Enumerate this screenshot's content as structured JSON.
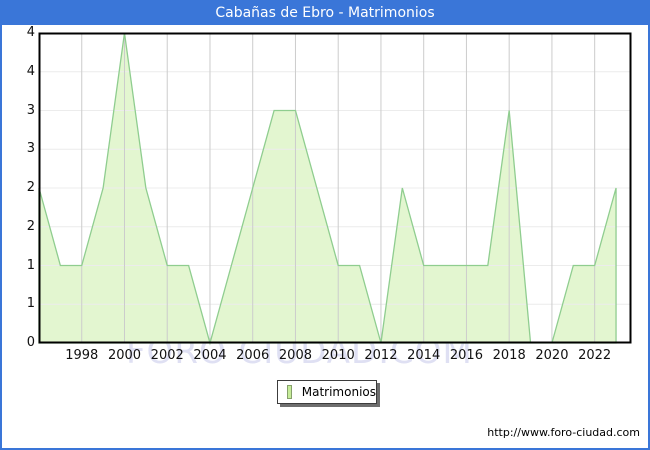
{
  "window": {
    "title": "Cabañas de Ebro - Matrimonios",
    "accent_color": "#3a76d8"
  },
  "watermark": {
    "text": "FORO CIUDAD.COM",
    "color": "#dfe0f3"
  },
  "legend": {
    "label": "Matrimonios",
    "swatch_fill": "#c6ec99",
    "swatch_border": "#86a06b"
  },
  "footer": {
    "url": "http://www.foro-ciudad.com"
  },
  "chart_data": {
    "type": "area",
    "title": "Cabañas de Ebro - Matrimonios",
    "series_name": "Matrimonios",
    "x": [
      1996,
      1997,
      1998,
      1999,
      2000,
      2001,
      2002,
      2003,
      2004,
      2005,
      2006,
      2007,
      2008,
      2009,
      2010,
      2011,
      2012,
      2013,
      2014,
      2015,
      2016,
      2017,
      2018,
      2019,
      2020,
      2021,
      2022,
      2023
    ],
    "values": [
      2,
      1,
      1,
      2,
      4,
      2,
      1,
      1,
      0,
      1,
      2,
      3,
      3,
      2,
      1,
      1,
      0,
      2,
      1,
      1,
      1,
      1,
      3,
      0,
      0,
      1,
      1,
      2
    ],
    "xlim": [
      1996,
      2023.7
    ],
    "ylim": [
      0,
      4
    ],
    "x_tick_years": [
      1998,
      2000,
      2002,
      2004,
      2006,
      2008,
      2010,
      2012,
      2014,
      2016,
      2018,
      2020,
      2022
    ],
    "y_tick_values": [
      4,
      3.5,
      3,
      2.5,
      2,
      1.5,
      1,
      0.5,
      0
    ],
    "y_tick_labels": [
      "4",
      "4",
      "3",
      "3",
      "2",
      "2",
      "1",
      "1",
      "0"
    ],
    "grid": true,
    "legend_position": "bottom",
    "area_fill": "#e3f6d0",
    "line_color": "#8fcd8f",
    "h_grid_color": "#ececec",
    "v_grid_color": "#cccccc",
    "plot_border_color": "#000000",
    "plot_bg": "#ffffff"
  }
}
